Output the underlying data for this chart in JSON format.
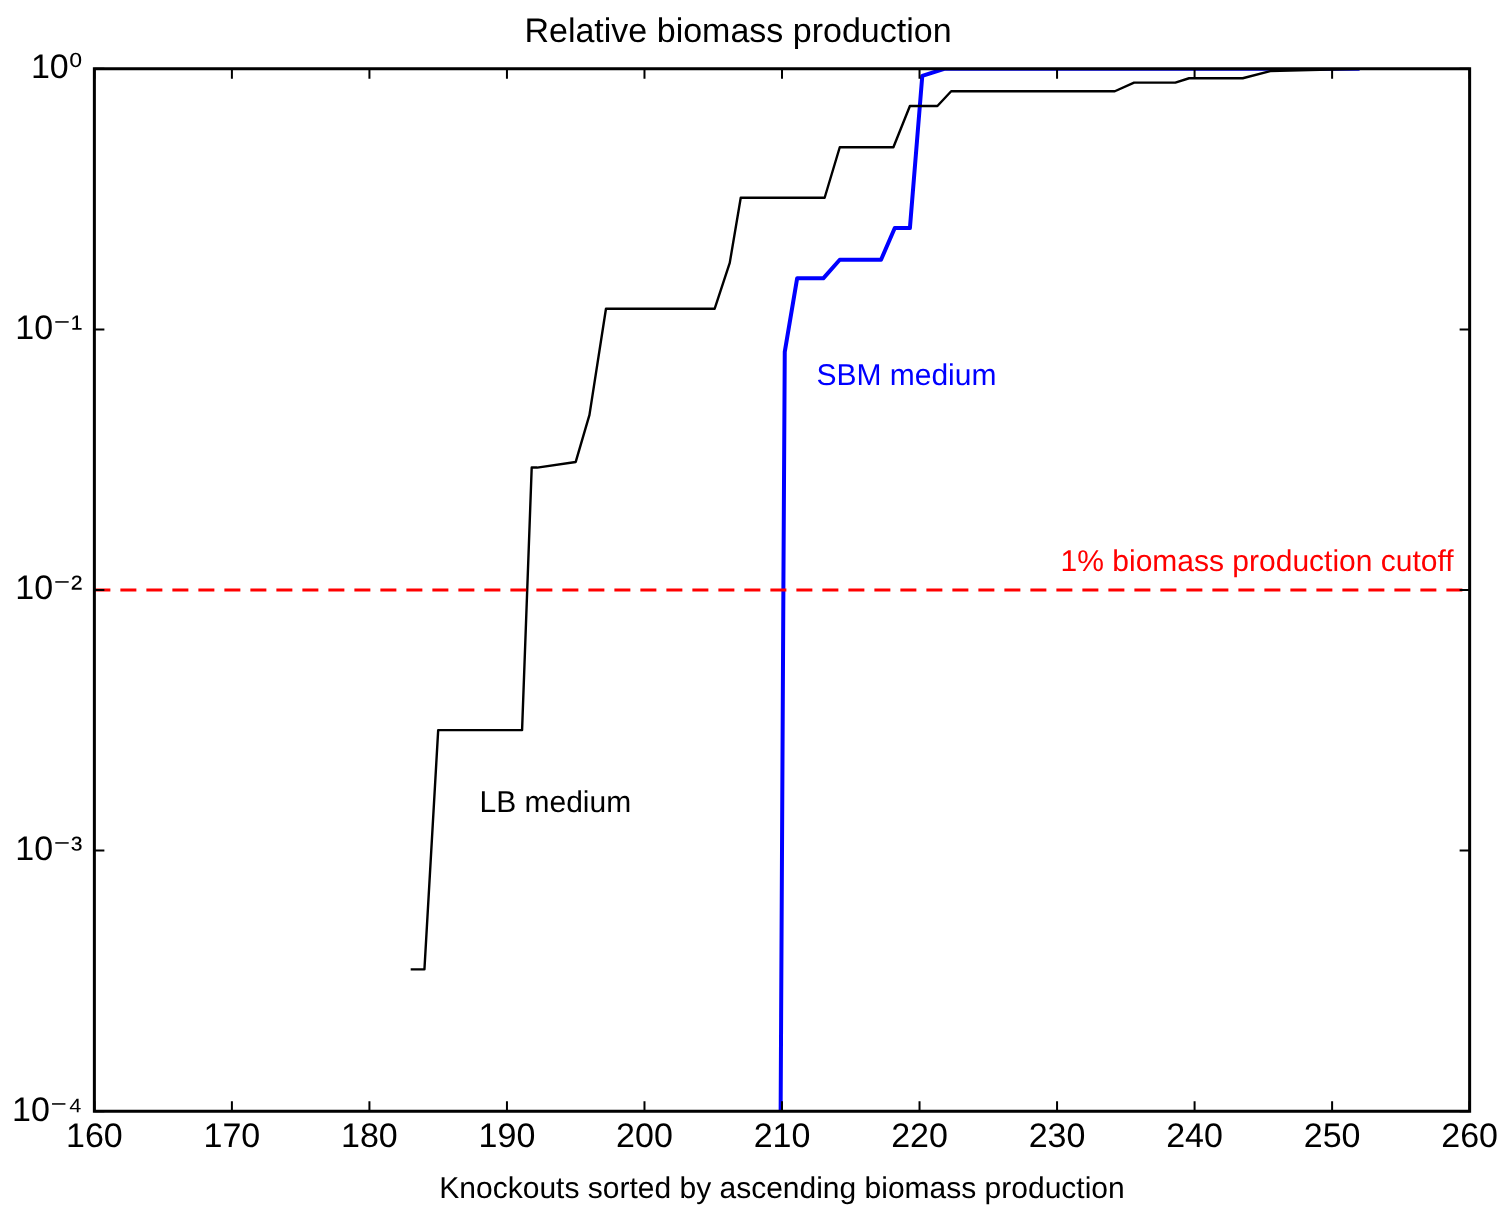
{
  "chart_data": {
    "type": "line",
    "title": "Relative biomass production",
    "xlabel": "Knockouts sorted by ascending biomass production",
    "xlim": [
      160,
      260
    ],
    "xticks": [
      160,
      170,
      180,
      190,
      200,
      210,
      220,
      230,
      240,
      250,
      260
    ],
    "ylim": [
      0.0001,
      1
    ],
    "yticks": [
      {
        "value": 0.0001,
        "label": "10⁻⁴"
      },
      {
        "value": 0.001,
        "label": "10⁻³"
      },
      {
        "value": 0.01,
        "label": "10⁻²"
      },
      {
        "value": 0.1,
        "label": "10⁻¹"
      },
      {
        "value": 1,
        "label": "10⁰"
      }
    ],
    "log": "y",
    "grid": false,
    "legend": false,
    "marker": "none",
    "line_style": "solid",
    "series": [
      {
        "name": "LB medium",
        "color": "#000000",
        "x": [
          183,
          184,
          185,
          191.1,
          191.8,
          192.2,
          195,
          196,
          197.2,
          205.1,
          206.2,
          207,
          213.1,
          214.2,
          218.1,
          219.3,
          221.3,
          222.3,
          234.2,
          235.6,
          238.6,
          239.6,
          243.5,
          245.5,
          252
        ],
        "values": [
          0.00035,
          0.00035,
          0.0029,
          0.0029,
          0.0295,
          0.0295,
          0.031,
          0.047,
          0.12,
          0.12,
          0.18,
          0.32,
          0.32,
          0.5,
          0.5,
          0.72,
          0.72,
          0.82,
          0.82,
          0.885,
          0.885,
          0.92,
          0.92,
          0.98,
          1
        ]
      },
      {
        "name": "SBM medium",
        "color": "#0000ff",
        "x": [
          209.9,
          210.1,
          210.2,
          211.1,
          213,
          214.2,
          217.2,
          218.2,
          219.3,
          220.2,
          221.8,
          252
        ],
        "values": [
          0.0001,
          0.01,
          0.082,
          0.157,
          0.157,
          0.185,
          0.185,
          0.245,
          0.245,
          0.94,
          1,
          1
        ]
      }
    ],
    "ref_lines": [
      {
        "axis": "y",
        "value": 0.01,
        "label": "1% biomass production cutoff",
        "color": "#ff0000",
        "line_style": "dashed"
      }
    ]
  }
}
